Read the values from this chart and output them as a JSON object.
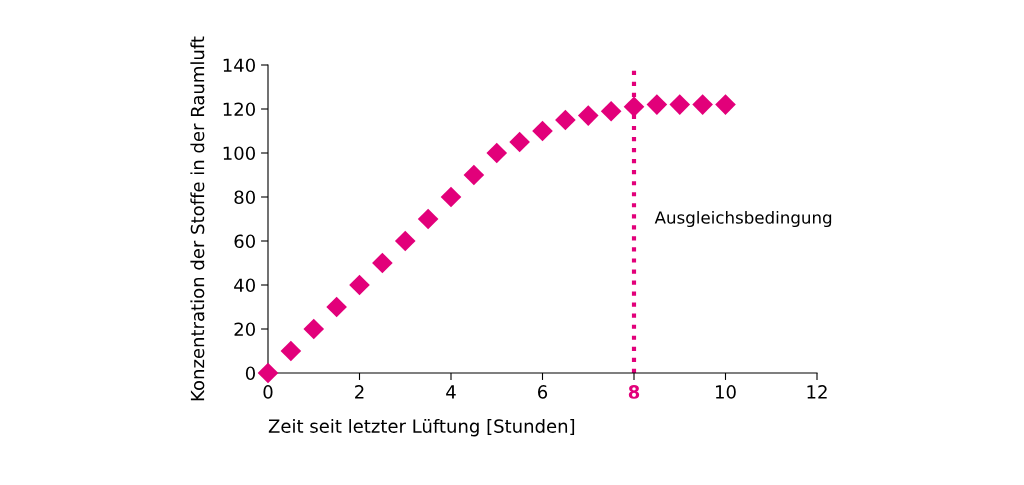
{
  "chart_data": {
    "type": "scatter",
    "xlabel": "Zeit seit letzter Lüftung [Stunden]",
    "ylabel": "Konzentration der Stoffe in der Raumluft",
    "x": [
      0,
      0.5,
      1,
      1.5,
      2,
      2.5,
      3,
      3.5,
      4,
      4.5,
      5,
      5.5,
      6,
      6.5,
      7,
      7.5,
      8,
      8.5,
      9,
      9.5,
      10
    ],
    "series": [
      {
        "color": "#e2007a",
        "values": [
          0,
          10,
          20,
          30,
          40,
          50,
          60,
          70,
          80,
          90,
          100,
          105,
          110,
          115,
          117,
          119,
          121,
          122,
          122,
          122,
          122
        ]
      }
    ],
    "marker": "diamond",
    "xlim": [
      0,
      12
    ],
    "xticks": [
      0,
      2,
      4,
      6,
      8,
      10,
      12
    ],
    "ylim": [
      0,
      140
    ],
    "yticks": [
      0,
      20,
      40,
      60,
      80,
      100,
      120,
      140
    ],
    "ref_lines": [
      {
        "axis": "x",
        "value": 8,
        "label": "Ausgleichsbedingung",
        "color": "#e2007a",
        "line_style": "dotted"
      }
    ],
    "grid": false,
    "legend": false
  }
}
